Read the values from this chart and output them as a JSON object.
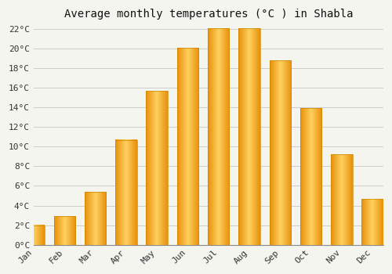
{
  "title": "Average monthly temperatures (°C ) in Shabla",
  "months": [
    "Jan",
    "Feb",
    "Mar",
    "Apr",
    "May",
    "Jun",
    "Jul",
    "Aug",
    "Sep",
    "Oct",
    "Nov",
    "Dec"
  ],
  "temperatures": [
    2.0,
    2.9,
    5.4,
    10.7,
    15.7,
    20.1,
    22.1,
    22.1,
    18.8,
    13.9,
    9.2,
    4.7
  ],
  "bar_color_light": "#FFC845",
  "bar_color_dark": "#F0A500",
  "background_color": "#F5F5F0",
  "plot_bg_color": "#F5F5F0",
  "grid_color": "#CCCCCC",
  "ytick_step": 2,
  "ymin": 0,
  "ymax": 22,
  "title_fontsize": 10,
  "tick_fontsize": 8,
  "font_family": "monospace"
}
